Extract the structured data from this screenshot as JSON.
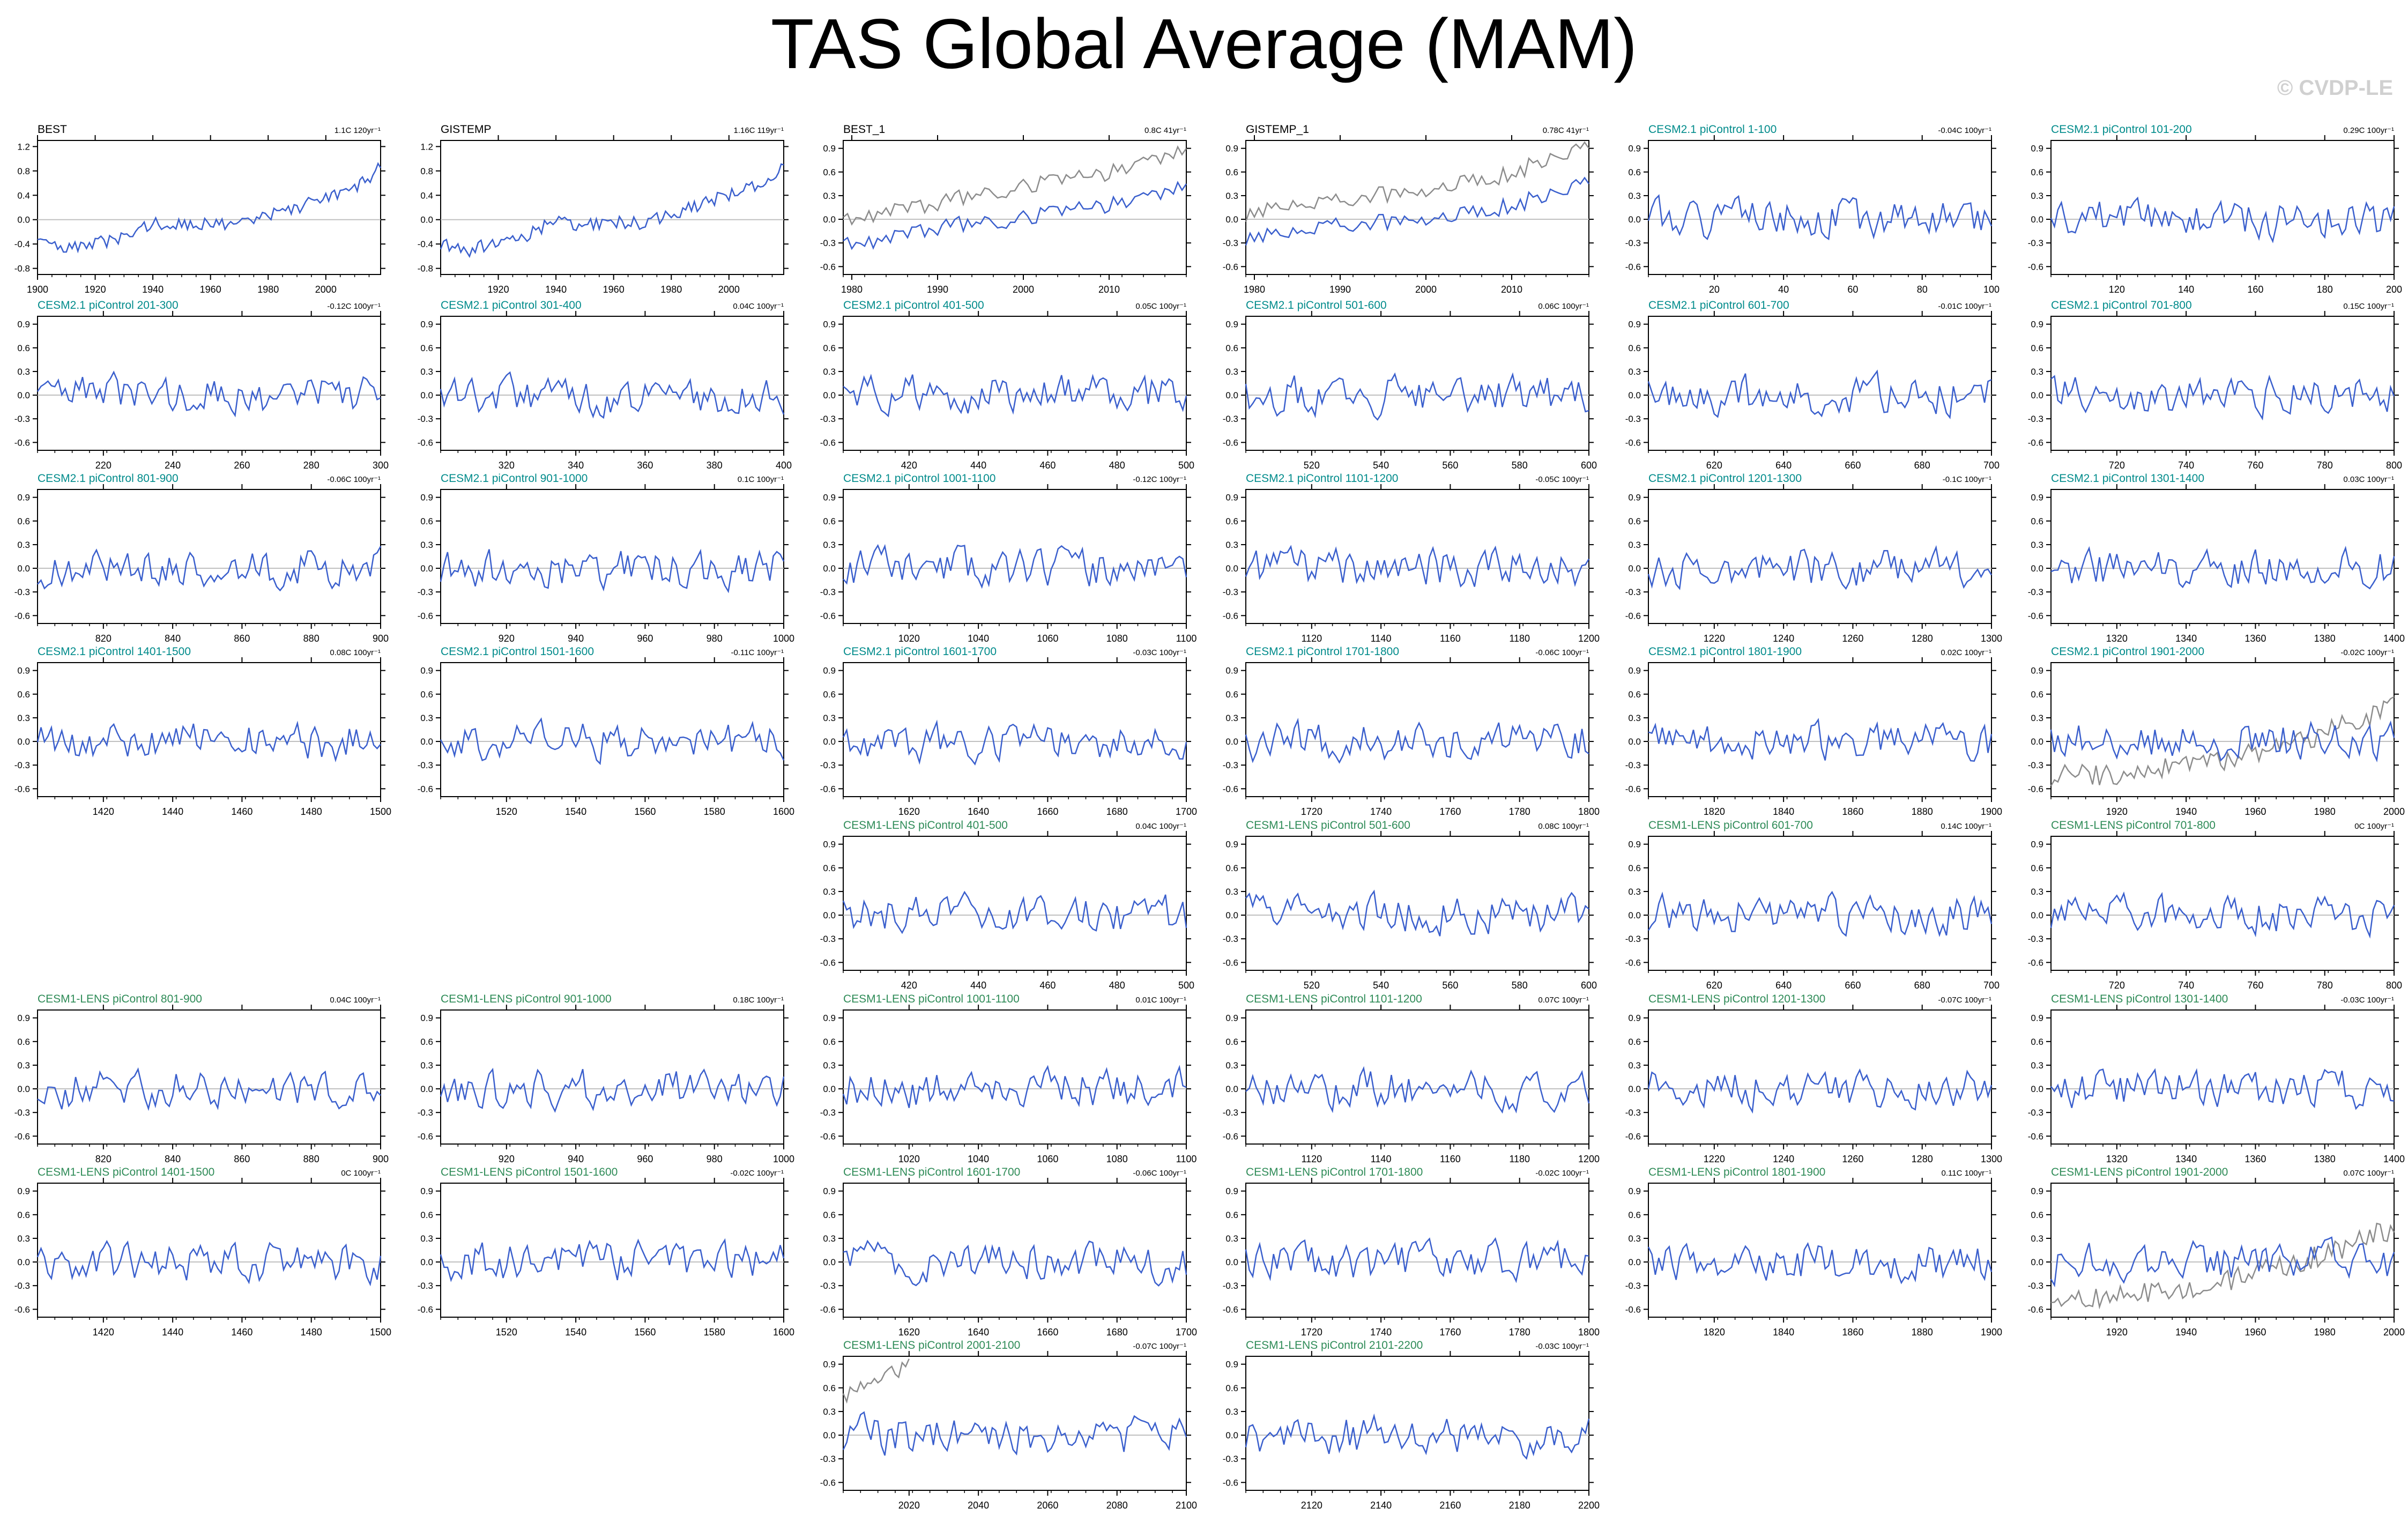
{
  "title": "TAS Global Average (MAM)",
  "credit": "© CVDP-LE",
  "colors": {
    "observations": "#000000",
    "cesm2": "#008B8B",
    "cesm1": "#2E8B57",
    "series_line": "#3a5fcd",
    "observed_overlay": "#8c8c8c",
    "zero_line": "#c0c0c0"
  },
  "chart_data": [
    {
      "type": "line",
      "title": "BEST",
      "trend": "1.1C 120yr⁻¹",
      "title_color": "observations",
      "xlim": [
        1900,
        2019
      ],
      "xticks": [
        1900,
        1920,
        1940,
        1960,
        1980,
        2000
      ],
      "ylim": [
        -0.9,
        1.3
      ],
      "yticks": [
        -0.8,
        -0.4,
        0.0,
        0.4,
        0.8,
        1.2
      ],
      "yticklabels": [
        "-0.8",
        "-0.4",
        "0.0",
        "0.4",
        "0.8",
        "1.2"
      ],
      "series": [
        {
          "color": "series_line",
          "x": [
            1900,
            1910,
            1920,
            1930,
            1940,
            1950,
            1960,
            1970,
            1980,
            1990,
            2000,
            2010,
            2019
          ],
          "y": [
            -0.35,
            -0.5,
            -0.4,
            -0.3,
            -0.05,
            -0.1,
            -0.05,
            -0.05,
            0.05,
            0.2,
            0.35,
            0.5,
            0.85
          ]
        }
      ]
    },
    {
      "type": "line",
      "title": "GISTEMP",
      "trend": "1.16C 119yr⁻¹",
      "title_color": "observations",
      "xlim": [
        1900,
        2019
      ],
      "xticks": [
        1920,
        1940,
        1960,
        1980,
        2000
      ],
      "ylim": [
        -0.9,
        1.3
      ],
      "yticks": [
        -0.8,
        -0.4,
        0.0,
        0.4,
        0.8,
        1.2
      ],
      "yticklabels": [
        "-0.8",
        "-0.4",
        "0.0",
        "0.4",
        "0.8",
        "1.2"
      ],
      "series": [
        {
          "color": "series_line",
          "x": [
            1900,
            1910,
            1920,
            1930,
            1940,
            1950,
            1960,
            1970,
            1980,
            1990,
            2000,
            2010,
            2019
          ],
          "y": [
            -0.4,
            -0.5,
            -0.35,
            -0.25,
            0.0,
            -0.1,
            -0.05,
            -0.05,
            0.1,
            0.25,
            0.4,
            0.55,
            0.9
          ]
        }
      ]
    },
    {
      "type": "line",
      "title": "BEST_1",
      "trend": "0.8C 41yr⁻¹",
      "title_color": "observations",
      "xlim": [
        1979,
        2019
      ],
      "xticks": [
        1980,
        1990,
        2000,
        2010
      ],
      "ylim": [
        -0.7,
        1.0
      ],
      "yticks": [
        -0.6,
        -0.3,
        0.0,
        0.3,
        0.6,
        0.9
      ],
      "yticklabels": [
        "-0.6",
        "-0.3",
        "0.0",
        "0.3",
        "0.6",
        "0.9"
      ],
      "series": [
        {
          "color": "observed_overlay",
          "x": [
            1979,
            1984,
            1989,
            1994,
            1999,
            2004,
            2009,
            2014,
            2019
          ],
          "y": [
            0.0,
            0.1,
            0.2,
            0.3,
            0.4,
            0.5,
            0.55,
            0.75,
            0.9
          ]
        },
        {
          "color": "series_line",
          "x": [
            1979,
            1984,
            1989,
            1994,
            1999,
            2004,
            2009,
            2014,
            2019
          ],
          "y": [
            -0.3,
            -0.25,
            -0.1,
            -0.05,
            0.0,
            0.1,
            0.15,
            0.3,
            0.45
          ]
        }
      ]
    },
    {
      "type": "line",
      "title": "GISTEMP_1",
      "trend": "0.78C 41yr⁻¹",
      "title_color": "observations",
      "xlim": [
        1979,
        2019
      ],
      "xticks": [
        1980,
        1990,
        2000,
        2010
      ],
      "ylim": [
        -0.7,
        1.0
      ],
      "yticks": [
        -0.6,
        -0.3,
        0.0,
        0.3,
        0.6,
        0.9
      ],
      "yticklabels": [
        "-0.6",
        "-0.3",
        "0.0",
        "0.3",
        "0.6",
        "0.9"
      ],
      "series": [
        {
          "color": "observed_overlay",
          "x": [
            1979,
            1984,
            1989,
            1994,
            1999,
            2004,
            2009,
            2014,
            2019
          ],
          "y": [
            0.05,
            0.15,
            0.2,
            0.3,
            0.35,
            0.45,
            0.55,
            0.75,
            0.9
          ]
        },
        {
          "color": "series_line",
          "x": [
            1979,
            1984,
            1989,
            1994,
            1999,
            2004,
            2009,
            2014,
            2019
          ],
          "y": [
            -0.25,
            -0.2,
            -0.1,
            -0.05,
            0.0,
            0.05,
            0.15,
            0.3,
            0.45
          ]
        }
      ]
    },
    {
      "type": "line",
      "title": "CESM2.1 piControl 1-100",
      "trend": "-0.04C 100yr⁻¹",
      "title_color": "cesm2",
      "xlim": [
        1,
        100
      ],
      "xticks": [
        20,
        40,
        60,
        80,
        100
      ],
      "seed": 1
    },
    {
      "type": "line",
      "title": "CESM2.1 piControl 101-200",
      "trend": "0.29C 100yr⁻¹",
      "title_color": "cesm2",
      "xlim": [
        101,
        200
      ],
      "xticks": [
        120,
        140,
        160,
        180,
        200
      ],
      "seed": 2
    },
    {
      "type": "line",
      "title": "CESM2.1 piControl 201-300",
      "trend": "-0.12C 100yr⁻¹",
      "title_color": "cesm2",
      "xlim": [
        201,
        300
      ],
      "xticks": [
        220,
        240,
        260,
        280,
        300
      ],
      "seed": 3
    },
    {
      "type": "line",
      "title": "CESM2.1 piControl 301-400",
      "trend": "0.04C 100yr⁻¹",
      "title_color": "cesm2",
      "xlim": [
        301,
        400
      ],
      "xticks": [
        320,
        340,
        360,
        380,
        400
      ],
      "seed": 4
    },
    {
      "type": "line",
      "title": "CESM2.1 piControl 401-500",
      "trend": "0.05C 100yr⁻¹",
      "title_color": "cesm2",
      "xlim": [
        401,
        500
      ],
      "xticks": [
        420,
        440,
        460,
        480,
        500
      ],
      "seed": 5
    },
    {
      "type": "line",
      "title": "CESM2.1 piControl 501-600",
      "trend": "0.06C 100yr⁻¹",
      "title_color": "cesm2",
      "xlim": [
        501,
        600
      ],
      "xticks": [
        520,
        540,
        560,
        580,
        600
      ],
      "seed": 6
    },
    {
      "type": "line",
      "title": "CESM2.1 piControl 601-700",
      "trend": "-0.01C 100yr⁻¹",
      "title_color": "cesm2",
      "xlim": [
        601,
        700
      ],
      "xticks": [
        620,
        640,
        660,
        680,
        700
      ],
      "seed": 7
    },
    {
      "type": "line",
      "title": "CESM2.1 piControl 701-800",
      "trend": "0.15C 100yr⁻¹",
      "title_color": "cesm2",
      "xlim": [
        701,
        800
      ],
      "xticks": [
        720,
        740,
        760,
        780,
        800
      ],
      "seed": 8
    },
    {
      "type": "line",
      "title": "CESM2.1 piControl 801-900",
      "trend": "-0.06C 100yr⁻¹",
      "title_color": "cesm2",
      "xlim": [
        801,
        900
      ],
      "xticks": [
        820,
        840,
        860,
        880,
        900
      ],
      "seed": 9
    },
    {
      "type": "line",
      "title": "CESM2.1 piControl 901-1000",
      "trend": "0.1C 100yr⁻¹",
      "title_color": "cesm2",
      "xlim": [
        901,
        1000
      ],
      "xticks": [
        920,
        940,
        960,
        980,
        1000
      ],
      "seed": 10
    },
    {
      "type": "line",
      "title": "CESM2.1 piControl 1001-1100",
      "trend": "-0.12C 100yr⁻¹",
      "title_color": "cesm2",
      "xlim": [
        1001,
        1100
      ],
      "xticks": [
        1020,
        1040,
        1060,
        1080,
        1100
      ],
      "seed": 11
    },
    {
      "type": "line",
      "title": "CESM2.1 piControl 1101-1200",
      "trend": "-0.05C 100yr⁻¹",
      "title_color": "cesm2",
      "xlim": [
        1101,
        1200
      ],
      "xticks": [
        1120,
        1140,
        1160,
        1180,
        1200
      ],
      "seed": 12
    },
    {
      "type": "line",
      "title": "CESM2.1 piControl 1201-1300",
      "trend": "-0.1C 100yr⁻¹",
      "title_color": "cesm2",
      "xlim": [
        1201,
        1300
      ],
      "xticks": [
        1220,
        1240,
        1260,
        1280,
        1300
      ],
      "seed": 13
    },
    {
      "type": "line",
      "title": "CESM2.1 piControl 1301-1400",
      "trend": "0.03C 100yr⁻¹",
      "title_color": "cesm2",
      "xlim": [
        1301,
        1400
      ],
      "xticks": [
        1320,
        1340,
        1360,
        1380,
        1400
      ],
      "seed": 14
    },
    {
      "type": "line",
      "title": "CESM2.1 piControl 1401-1500",
      "trend": "0.08C 100yr⁻¹",
      "title_color": "cesm2",
      "xlim": [
        1401,
        1500
      ],
      "xticks": [
        1420,
        1440,
        1460,
        1480,
        1500
      ],
      "seed": 15
    },
    {
      "type": "line",
      "title": "CESM2.1 piControl 1501-1600",
      "trend": "-0.11C 100yr⁻¹",
      "title_color": "cesm2",
      "xlim": [
        1501,
        1600
      ],
      "xticks": [
        1520,
        1540,
        1560,
        1580,
        1600
      ],
      "seed": 16
    },
    {
      "type": "line",
      "title": "CESM2.1 piControl 1601-1700",
      "trend": "-0.03C 100yr⁻¹",
      "title_color": "cesm2",
      "xlim": [
        1601,
        1700
      ],
      "xticks": [
        1620,
        1640,
        1660,
        1680,
        1700
      ],
      "seed": 17
    },
    {
      "type": "line",
      "title": "CESM2.1 piControl 1701-1800",
      "trend": "-0.06C 100yr⁻¹",
      "title_color": "cesm2",
      "xlim": [
        1701,
        1800
      ],
      "xticks": [
        1720,
        1740,
        1760,
        1780,
        1800
      ],
      "seed": 18
    },
    {
      "type": "line",
      "title": "CESM2.1 piControl 1801-1900",
      "trend": "0.02C 100yr⁻¹",
      "title_color": "cesm2",
      "xlim": [
        1801,
        1900
      ],
      "xticks": [
        1820,
        1840,
        1860,
        1880,
        1900
      ],
      "seed": 19
    },
    {
      "type": "line",
      "title": "CESM2.1 piControl 1901-2000",
      "trend": "-0.02C 100yr⁻¹",
      "title_color": "cesm2",
      "xlim": [
        1901,
        2000
      ],
      "xticks": [
        1920,
        1940,
        1960,
        1980,
        2000
      ],
      "seed": 20,
      "observed_overlay": true
    },
    {
      "type": "line",
      "title": "CESM1-LENS piControl 401-500",
      "trend": "0.04C 100yr⁻¹",
      "title_color": "cesm1",
      "xlim": [
        401,
        500
      ],
      "xticks": [
        420,
        440,
        460,
        480,
        500
      ],
      "seed": 21
    },
    {
      "type": "line",
      "title": "CESM1-LENS piControl 501-600",
      "trend": "0.08C 100yr⁻¹",
      "title_color": "cesm1",
      "xlim": [
        501,
        600
      ],
      "xticks": [
        520,
        540,
        560,
        580,
        600
      ],
      "seed": 22
    },
    {
      "type": "line",
      "title": "CESM1-LENS piControl 601-700",
      "trend": "0.14C 100yr⁻¹",
      "title_color": "cesm1",
      "xlim": [
        601,
        700
      ],
      "xticks": [
        620,
        640,
        660,
        680,
        700
      ],
      "seed": 23
    },
    {
      "type": "line",
      "title": "CESM1-LENS piControl 701-800",
      "trend": "0C 100yr⁻¹",
      "title_color": "cesm1",
      "xlim": [
        701,
        800
      ],
      "xticks": [
        720,
        740,
        760,
        780,
        800
      ],
      "seed": 24
    },
    {
      "type": "line",
      "title": "CESM1-LENS piControl 801-900",
      "trend": "0.04C 100yr⁻¹",
      "title_color": "cesm1",
      "xlim": [
        801,
        900
      ],
      "xticks": [
        820,
        840,
        860,
        880,
        900
      ],
      "seed": 25
    },
    {
      "type": "line",
      "title": "CESM1-LENS piControl 901-1000",
      "trend": "0.18C 100yr⁻¹",
      "title_color": "cesm1",
      "xlim": [
        901,
        1000
      ],
      "xticks": [
        920,
        940,
        960,
        980,
        1000
      ],
      "seed": 26
    },
    {
      "type": "line",
      "title": "CESM1-LENS piControl 1001-1100",
      "trend": "0.01C 100yr⁻¹",
      "title_color": "cesm1",
      "xlim": [
        1001,
        1100
      ],
      "xticks": [
        1020,
        1040,
        1060,
        1080,
        1100
      ],
      "seed": 27
    },
    {
      "type": "line",
      "title": "CESM1-LENS piControl 1101-1200",
      "trend": "0.07C 100yr⁻¹",
      "title_color": "cesm1",
      "xlim": [
        1101,
        1200
      ],
      "xticks": [
        1120,
        1140,
        1160,
        1180,
        1200
      ],
      "seed": 28
    },
    {
      "type": "line",
      "title": "CESM1-LENS piControl 1201-1300",
      "trend": "-0.07C 100yr⁻¹",
      "title_color": "cesm1",
      "xlim": [
        1201,
        1300
      ],
      "xticks": [
        1220,
        1240,
        1260,
        1280,
        1300
      ],
      "seed": 29
    },
    {
      "type": "line",
      "title": "CESM1-LENS piControl 1301-1400",
      "trend": "-0.03C 100yr⁻¹",
      "title_color": "cesm1",
      "xlim": [
        1301,
        1400
      ],
      "xticks": [
        1320,
        1340,
        1360,
        1380,
        1400
      ],
      "seed": 30
    },
    {
      "type": "line",
      "title": "CESM1-LENS piControl 1401-1500",
      "trend": "0C 100yr⁻¹",
      "title_color": "cesm1",
      "xlim": [
        1401,
        1500
      ],
      "xticks": [
        1420,
        1440,
        1460,
        1480,
        1500
      ],
      "seed": 31
    },
    {
      "type": "line",
      "title": "CESM1-LENS piControl 1501-1600",
      "trend": "-0.02C 100yr⁻¹",
      "title_color": "cesm1",
      "xlim": [
        1501,
        1600
      ],
      "xticks": [
        1520,
        1540,
        1560,
        1580,
        1600
      ],
      "seed": 32
    },
    {
      "type": "line",
      "title": "CESM1-LENS piControl 1601-1700",
      "trend": "-0.06C 100yr⁻¹",
      "title_color": "cesm1",
      "xlim": [
        1601,
        1700
      ],
      "xticks": [
        1620,
        1640,
        1660,
        1680,
        1700
      ],
      "seed": 33
    },
    {
      "type": "line",
      "title": "CESM1-LENS piControl 1701-1800",
      "trend": "-0.02C 100yr⁻¹",
      "title_color": "cesm1",
      "xlim": [
        1701,
        1800
      ],
      "xticks": [
        1720,
        1740,
        1760,
        1780,
        1800
      ],
      "seed": 34
    },
    {
      "type": "line",
      "title": "CESM1-LENS piControl 1801-1900",
      "trend": "0.11C 100yr⁻¹",
      "title_color": "cesm1",
      "xlim": [
        1801,
        1900
      ],
      "xticks": [
        1820,
        1840,
        1860,
        1880,
        1900
      ],
      "seed": 35
    },
    {
      "type": "line",
      "title": "CESM1-LENS piControl 1901-2000",
      "trend": "0.07C 100yr⁻¹",
      "title_color": "cesm1",
      "xlim": [
        1901,
        2000
      ],
      "xticks": [
        1920,
        1940,
        1960,
        1980,
        2000
      ],
      "seed": 36,
      "observed_overlay": true
    },
    {
      "type": "line",
      "title": "CESM1-LENS piControl 2001-2100",
      "trend": "-0.07C 100yr⁻¹",
      "title_color": "cesm1",
      "xlim": [
        2001,
        2100
      ],
      "xticks": [
        2020,
        2040,
        2060,
        2080,
        2100
      ],
      "seed": 37,
      "observed_overlay_short": true
    },
    {
      "type": "line",
      "title": "CESM1-LENS piControl 2101-2200",
      "trend": "-0.03C 100yr⁻¹",
      "title_color": "cesm1",
      "xlim": [
        2101,
        2200
      ],
      "xticks": [
        2120,
        2140,
        2160,
        2180,
        2200
      ],
      "seed": 38
    }
  ]
}
